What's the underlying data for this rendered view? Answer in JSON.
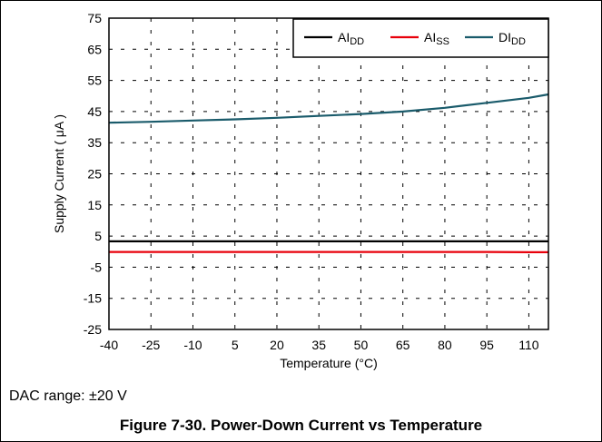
{
  "chart_data": {
    "type": "line",
    "xlabel": "Temperature (°C)",
    "ylabel": "Supply Current ( μA )",
    "xlim": [
      -40,
      117
    ],
    "ylim": [
      -25,
      75
    ],
    "x_ticks": [
      -40,
      -25,
      -10,
      5,
      20,
      35,
      50,
      65,
      80,
      95,
      110
    ],
    "y_ticks": [
      75,
      65,
      55,
      45,
      35,
      25,
      15,
      5,
      -5,
      -15,
      -25
    ],
    "grid": true,
    "legend_position": "top-right",
    "series": [
      {
        "name": "AI",
        "subscript": "DD",
        "color": "#000000",
        "x": [
          -40,
          -25,
          -10,
          5,
          20,
          35,
          50,
          65,
          80,
          95,
          110,
          117
        ],
        "y": [
          3.3,
          3.3,
          3.3,
          3.3,
          3.3,
          3.3,
          3.3,
          3.3,
          3.3,
          3.3,
          3.3,
          3.3
        ]
      },
      {
        "name": "AI",
        "subscript": "SS",
        "color": "#e8000b",
        "x": [
          -40,
          -25,
          -10,
          5,
          20,
          35,
          50,
          65,
          80,
          95,
          110,
          117
        ],
        "y": [
          -0.1,
          -0.1,
          -0.1,
          -0.1,
          -0.1,
          -0.1,
          -0.1,
          -0.1,
          -0.1,
          -0.1,
          -0.2,
          -0.2
        ]
      },
      {
        "name": "DI",
        "subscript": "DD",
        "color": "#1a5b6b",
        "x": [
          -40,
          -25,
          -10,
          5,
          20,
          35,
          50,
          65,
          80,
          95,
          110,
          117
        ],
        "y": [
          41.4,
          41.7,
          42.1,
          42.5,
          43.0,
          43.6,
          44.2,
          45.0,
          46.2,
          47.8,
          49.4,
          50.5
        ]
      }
    ]
  },
  "note": "DAC range: ±20 V",
  "caption": "Figure 7-30. Power-Down Current vs Temperature"
}
